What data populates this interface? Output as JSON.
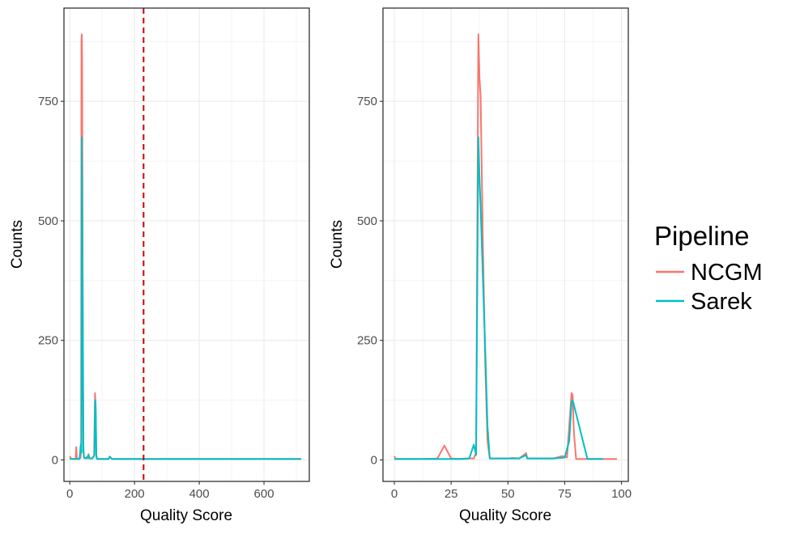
{
  "chart_data": [
    {
      "type": "line",
      "xlabel": "Quality Score",
      "ylabel": "Counts",
      "xlim": [
        -18,
        740
      ],
      "ylim": [
        -45,
        945
      ],
      "xticks": [
        0,
        200,
        400,
        600
      ],
      "yticks": [
        0,
        250,
        500,
        750
      ],
      "grid": true,
      "vline": {
        "x": 228,
        "color": "#cc0000",
        "style": "dashed"
      },
      "series": [
        {
          "name": "NCGM",
          "color": "#F8766D",
          "points": [
            [
              0,
              8
            ],
            [
              3,
              2
            ],
            [
              10,
              2
            ],
            [
              18,
              2
            ],
            [
              20,
              27
            ],
            [
              22,
              3
            ],
            [
              28,
              2
            ],
            [
              33,
              4
            ],
            [
              35,
              20
            ],
            [
              36,
              880
            ],
            [
              37,
              890
            ],
            [
              38,
              840
            ],
            [
              40,
              320
            ],
            [
              42,
              30
            ],
            [
              44,
              5
            ],
            [
              50,
              4
            ],
            [
              55,
              3
            ],
            [
              58,
              12
            ],
            [
              60,
              4
            ],
            [
              65,
              3
            ],
            [
              70,
              3
            ],
            [
              75,
              8
            ],
            [
              78,
              140
            ],
            [
              79,
              122
            ],
            [
              80,
              100
            ],
            [
              82,
              10
            ],
            [
              84,
              2
            ],
            [
              90,
              2
            ],
            [
              98,
              2
            ],
            [
              120,
              2
            ],
            [
              125,
              6
            ],
            [
              130,
              2
            ],
            [
              200,
              2
            ],
            [
              300,
              2
            ],
            [
              500,
              2
            ],
            [
              715,
              2
            ]
          ]
        },
        {
          "name": "Sarek",
          "color": "#00BFC4",
          "points": [
            [
              0,
              3
            ],
            [
              10,
              2
            ],
            [
              20,
              2
            ],
            [
              30,
              2
            ],
            [
              34,
              32
            ],
            [
              36,
              15
            ],
            [
              37,
              675
            ],
            [
              38,
              590
            ],
            [
              40,
              330
            ],
            [
              42,
              20
            ],
            [
              44,
              4
            ],
            [
              50,
              3
            ],
            [
              58,
              10
            ],
            [
              60,
              3
            ],
            [
              70,
              3
            ],
            [
              76,
              10
            ],
            [
              78,
              120
            ],
            [
              79,
              125
            ],
            [
              80,
              110
            ],
            [
              82,
              5
            ],
            [
              85,
              2
            ],
            [
              90,
              2
            ],
            [
              120,
              2
            ],
            [
              123,
              7
            ],
            [
              130,
              2
            ],
            [
              200,
              2
            ],
            [
              400,
              2
            ],
            [
              600,
              2
            ],
            [
              715,
              2
            ]
          ]
        }
      ]
    },
    {
      "type": "line",
      "xlabel": "Quality Score",
      "ylabel": "Counts",
      "xlim": [
        -5,
        103
      ],
      "ylim": [
        -45,
        945
      ],
      "xticks": [
        0,
        25,
        50,
        75,
        100
      ],
      "yticks": [
        0,
        250,
        500,
        750
      ],
      "grid": true,
      "series": [
        {
          "name": "NCGM",
          "color": "#F8766D",
          "points": [
            [
              0,
              8
            ],
            [
              0.5,
              2
            ],
            [
              5,
              2
            ],
            [
              10,
              2
            ],
            [
              15,
              2
            ],
            [
              19,
              3
            ],
            [
              22,
              30
            ],
            [
              25,
              3
            ],
            [
              28,
              2
            ],
            [
              32,
              3
            ],
            [
              35,
              3
            ],
            [
              36,
              15
            ],
            [
              37,
              890
            ],
            [
              37.5,
              800
            ],
            [
              38,
              760
            ],
            [
              39,
              450
            ],
            [
              40,
              200
            ],
            [
              41,
              40
            ],
            [
              42,
              3
            ],
            [
              45,
              3
            ],
            [
              50,
              3
            ],
            [
              52,
              4
            ],
            [
              55,
              3
            ],
            [
              58,
              14
            ],
            [
              58.5,
              3
            ],
            [
              60,
              3
            ],
            [
              65,
              3
            ],
            [
              70,
              3
            ],
            [
              74,
              8
            ],
            [
              76,
              5
            ],
            [
              78,
              140
            ],
            [
              78.5,
              135
            ],
            [
              79,
              60
            ],
            [
              80,
              2
            ],
            [
              85,
              2
            ],
            [
              90,
              2
            ],
            [
              95,
              2
            ],
            [
              98,
              2
            ]
          ]
        },
        {
          "name": "Sarek",
          "color": "#00BFC4",
          "points": [
            [
              0,
              2
            ],
            [
              10,
              2
            ],
            [
              20,
              2
            ],
            [
              30,
              2
            ],
            [
              33,
              3
            ],
            [
              35,
              32
            ],
            [
              36,
              10
            ],
            [
              37,
              675
            ],
            [
              37.5,
              590
            ],
            [
              38,
              530
            ],
            [
              39,
              380
            ],
            [
              40,
              230
            ],
            [
              41,
              70
            ],
            [
              42,
              3
            ],
            [
              45,
              3
            ],
            [
              50,
              3
            ],
            [
              55,
              3
            ],
            [
              58,
              10
            ],
            [
              58.5,
              3
            ],
            [
              60,
              3
            ],
            [
              65,
              3
            ],
            [
              70,
              3
            ],
            [
              75,
              5
            ],
            [
              77,
              40
            ],
            [
              78,
              120
            ],
            [
              78.5,
              125
            ],
            [
              85,
              2
            ],
            [
              88,
              2
            ],
            [
              90,
              2
            ],
            [
              92,
              2
            ]
          ]
        }
      ]
    }
  ],
  "legend": {
    "title": "Pipeline",
    "items": [
      {
        "label": "NCGM",
        "color": "#F8766D"
      },
      {
        "label": "Sarek",
        "color": "#00BFC4"
      }
    ]
  }
}
